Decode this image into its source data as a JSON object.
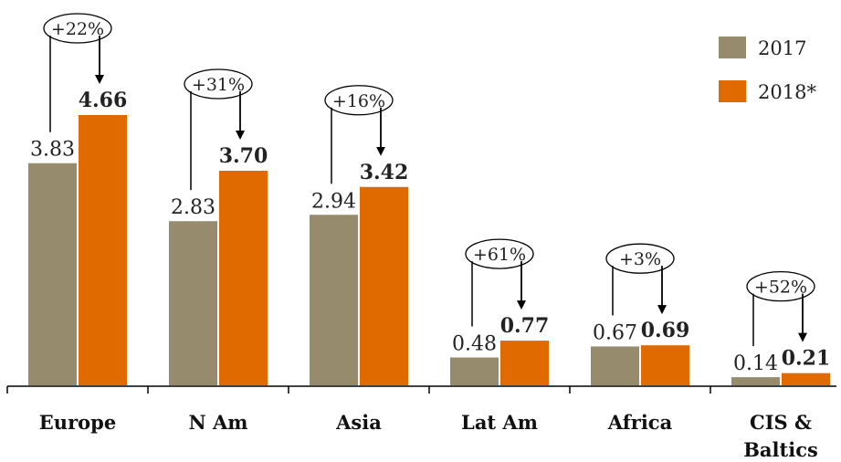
{
  "chart_data": {
    "type": "bar",
    "categories": [
      "Europe",
      "N Am",
      "Asia",
      "Lat Am",
      "Africa",
      "CIS & Baltics"
    ],
    "category_lines": [
      [
        "Europe"
      ],
      [
        "N Am"
      ],
      [
        "Asia"
      ],
      [
        "Lat Am"
      ],
      [
        "Africa"
      ],
      [
        "CIS &",
        "Baltics"
      ]
    ],
    "series": [
      {
        "name": "2017",
        "values": [
          3.83,
          2.83,
          2.94,
          0.48,
          0.67,
          0.14
        ],
        "labels": [
          "3.83",
          "2.83",
          "2.94",
          "0.48",
          "0.67",
          "0.14"
        ],
        "color": "#978b6d"
      },
      {
        "name": "2018*",
        "values": [
          4.66,
          3.7,
          3.42,
          0.77,
          0.69,
          0.21
        ],
        "labels": [
          "4.66",
          "3.70",
          "3.42",
          "0.77",
          "0.69",
          "0.21"
        ],
        "color": "#e06a00"
      }
    ],
    "growth_labels": [
      "+22%",
      "+31%",
      "+16%",
      "+61%",
      "+3%",
      "+52%"
    ],
    "ylim": [
      0,
      4.66
    ],
    "grid": false,
    "legend_position": "top-right"
  }
}
